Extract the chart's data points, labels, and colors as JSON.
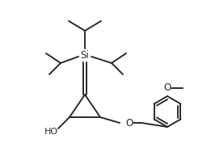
{
  "background": "#ffffff",
  "line_color": "#2a2a2a",
  "line_width": 1.4,
  "figure_size": [
    2.61,
    1.93
  ],
  "dpi": 100,
  "si_label": "Si",
  "oh_label": "HO",
  "o_label": "O",
  "o2_label": "O"
}
